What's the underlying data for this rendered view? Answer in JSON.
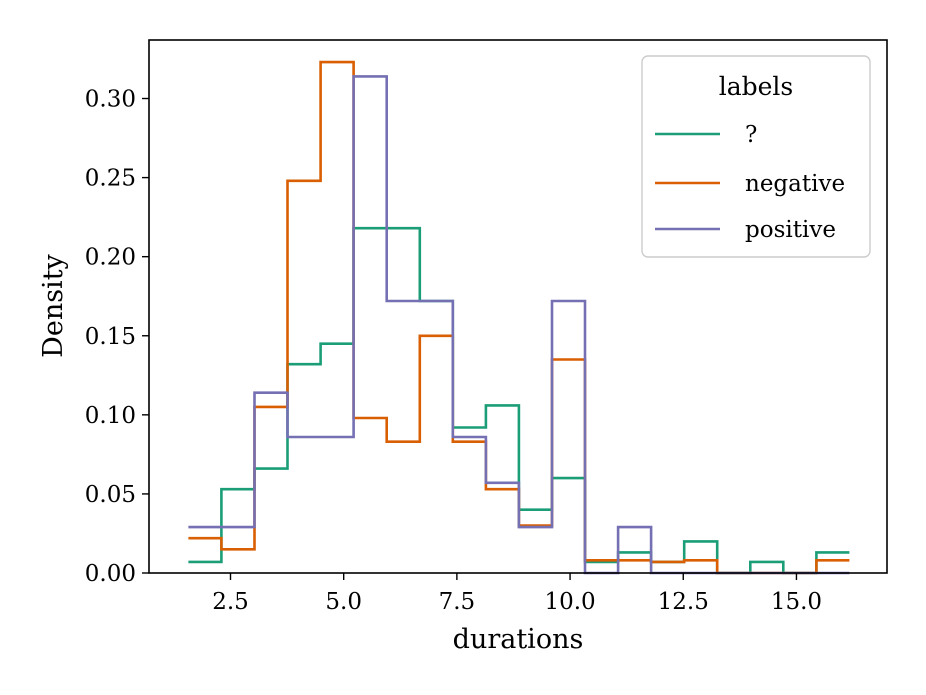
{
  "chart_data": {
    "type": "histogram-step",
    "xlabel": "durations",
    "ylabel": "Density",
    "xlim": [
      0.7,
      17.0
    ],
    "ylim": [
      0.0,
      0.337
    ],
    "xticks": [
      2.5,
      5.0,
      7.5,
      10.0,
      12.5,
      15.0
    ],
    "xtick_labels": [
      "2.5",
      "5.0",
      "7.5",
      "10.0",
      "12.5",
      "15.0"
    ],
    "yticks": [
      0.0,
      0.05,
      0.1,
      0.15,
      0.2,
      0.25,
      0.3
    ],
    "ytick_labels": [
      "0.00",
      "0.05",
      "0.10",
      "0.15",
      "0.20",
      "0.25",
      "0.30"
    ],
    "bin_edges": [
      1.57,
      2.3,
      3.03,
      3.76,
      4.49,
      5.22,
      5.95,
      6.68,
      7.41,
      8.14,
      8.87,
      9.6,
      10.33,
      11.06,
      11.79,
      12.52,
      13.25,
      13.98,
      14.71,
      15.44,
      16.17
    ],
    "series": [
      {
        "name": "?",
        "color": "#1b9e77",
        "values": [
          0.007,
          0.053,
          0.066,
          0.132,
          0.145,
          0.218,
          0.218,
          0.172,
          0.092,
          0.106,
          0.04,
          0.06,
          0.007,
          0.013,
          0.007,
          0.02,
          0.0,
          0.007,
          0.0,
          0.013
        ]
      },
      {
        "name": "negative",
        "color": "#d95f02",
        "values": [
          0.022,
          0.015,
          0.105,
          0.248,
          0.323,
          0.098,
          0.083,
          0.15,
          0.083,
          0.053,
          0.03,
          0.135,
          0.008,
          0.008,
          0.007,
          0.008,
          0.0,
          0.0,
          0.0,
          0.008
        ]
      },
      {
        "name": "positive",
        "color": "#7570b3",
        "values": [
          0.029,
          0.029,
          0.114,
          0.086,
          0.086,
          0.314,
          0.172,
          0.172,
          0.086,
          0.057,
          0.029,
          0.172,
          0.0,
          0.029,
          0.0,
          0.0,
          0.0,
          0.0,
          0.0,
          0.0
        ]
      }
    ],
    "legend": {
      "title": "labels",
      "placement": "top-right",
      "entries": [
        "?",
        "negative",
        "positive"
      ]
    },
    "grid": false
  }
}
